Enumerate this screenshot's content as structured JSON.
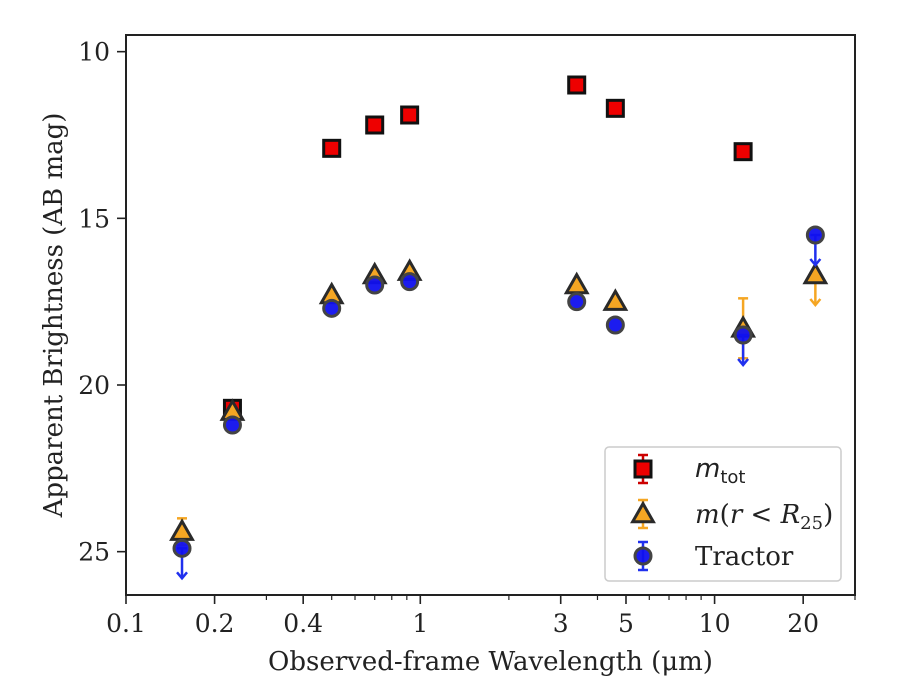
{
  "chart_data": {
    "type": "scatter",
    "xscale": "log",
    "yinverted": true,
    "xlim": [
      0.1,
      30
    ],
    "ylim": [
      9.5,
      26.3
    ],
    "xlabel": "Observed-frame Wavelength (μm)",
    "ylabel": "Apparent Brightness (AB mag)",
    "xticks": [
      {
        "value": 0.1,
        "label": "0.1"
      },
      {
        "value": 0.2,
        "label": "0.2"
      },
      {
        "value": 0.4,
        "label": "0.4"
      },
      {
        "value": 1,
        "label": "1"
      },
      {
        "value": 3,
        "label": "3"
      },
      {
        "value": 5,
        "label": "5"
      },
      {
        "value": 10,
        "label": "10"
      },
      {
        "value": 20,
        "label": "20"
      }
    ],
    "xminor": [
      0.3,
      0.5,
      0.6,
      0.7,
      0.8,
      0.9,
      2,
      4,
      6,
      7,
      8,
      9,
      30
    ],
    "yticks": [
      {
        "value": 10,
        "label": "10"
      },
      {
        "value": 15,
        "label": "15"
      },
      {
        "value": 20,
        "label": "20"
      },
      {
        "value": 25,
        "label": "25"
      }
    ],
    "legend_position": "lower-right",
    "series": [
      {
        "name": "m_tot",
        "marker": "square",
        "color": "#ee0000",
        "edge": "#111111",
        "errcolor": "#cc0000",
        "points": [
          {
            "x": 0.23,
            "y": 20.7
          },
          {
            "x": 0.5,
            "y": 12.9
          },
          {
            "x": 0.7,
            "y": 12.2
          },
          {
            "x": 0.92,
            "y": 11.9
          },
          {
            "x": 3.4,
            "y": 11.0
          },
          {
            "x": 4.6,
            "y": 11.7
          },
          {
            "x": 12.5,
            "y": 13.0
          }
        ]
      },
      {
        "name": "m(r < R25)",
        "marker": "triangle",
        "color": "#f5a623",
        "edge": "#2a2a2a",
        "errcolor": "#f5a623",
        "points": [
          {
            "x": 0.155,
            "y": 24.4,
            "yerr": 0.4,
            "upper_limit": false
          },
          {
            "x": 0.23,
            "y": 20.8
          },
          {
            "x": 0.5,
            "y": 17.3
          },
          {
            "x": 0.7,
            "y": 16.7
          },
          {
            "x": 0.92,
            "y": 16.6
          },
          {
            "x": 3.4,
            "y": 17.0
          },
          {
            "x": 4.6,
            "y": 17.5
          },
          {
            "x": 12.5,
            "y": 18.3,
            "yerr": 0.9
          },
          {
            "x": 22,
            "y": 16.7,
            "upper_limit": true
          }
        ]
      },
      {
        "name": "Tractor",
        "marker": "circle",
        "color": "#1010ee",
        "edge": "#444444",
        "errcolor": "#2030ee",
        "points": [
          {
            "x": 0.155,
            "y": 24.9,
            "upper_limit": true
          },
          {
            "x": 0.23,
            "y": 21.2
          },
          {
            "x": 0.5,
            "y": 17.7
          },
          {
            "x": 0.7,
            "y": 17.0
          },
          {
            "x": 0.92,
            "y": 16.9
          },
          {
            "x": 3.4,
            "y": 17.5
          },
          {
            "x": 4.6,
            "y": 18.2
          },
          {
            "x": 12.5,
            "y": 18.5,
            "upper_limit": true
          },
          {
            "x": 22,
            "y": 15.5,
            "upper_limit": true
          }
        ]
      }
    ]
  }
}
